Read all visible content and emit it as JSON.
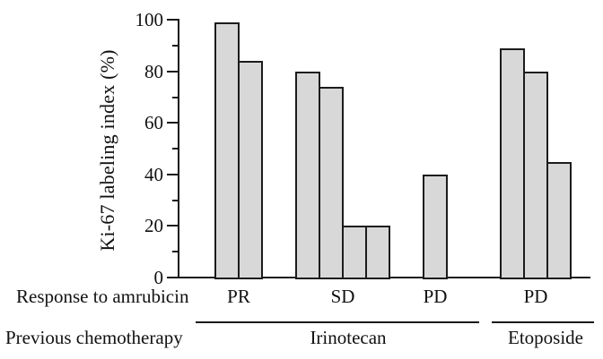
{
  "chart_data": {
    "type": "bar",
    "title": "",
    "ylabel": "Ki-67 labeling index (%)",
    "xlabel": "",
    "ylim": [
      0,
      100
    ],
    "y_axis": {
      "major_ticks": [
        0,
        20,
        40,
        60,
        80,
        100
      ],
      "major_tick_labels": [
        "0",
        "20",
        "40",
        "60",
        "80",
        "100"
      ],
      "minor_ticks": [
        10,
        30,
        50,
        70,
        90
      ]
    },
    "grid": "off",
    "legend": "none",
    "row_labels": {
      "response": "Response to amrubicin",
      "chemotherapy": "Previous chemotherapy"
    },
    "groups": [
      {
        "response": "PR",
        "chemotherapy": "Irinotecan",
        "values": [
          99,
          84
        ]
      },
      {
        "response": "SD",
        "chemotherapy": "Irinotecan",
        "values": [
          80,
          74,
          20,
          20
        ]
      },
      {
        "response": "PD",
        "chemotherapy": "Irinotecan",
        "values": [
          40
        ]
      },
      {
        "response": "PD",
        "chemotherapy": "Etoposide",
        "values": [
          89,
          80,
          45
        ]
      }
    ],
    "chemo_groups": [
      {
        "label": "Irinotecan",
        "spans_groups": [
          0,
          1,
          2
        ]
      },
      {
        "label": "Etoposide",
        "spans_groups": [
          3
        ]
      }
    ],
    "colors": {
      "bar_fill": "#d8d8d8",
      "bar_border": "#1c1c1c",
      "axis": "#1a1a1a",
      "text": "#111111",
      "background": "#ffffff"
    }
  }
}
